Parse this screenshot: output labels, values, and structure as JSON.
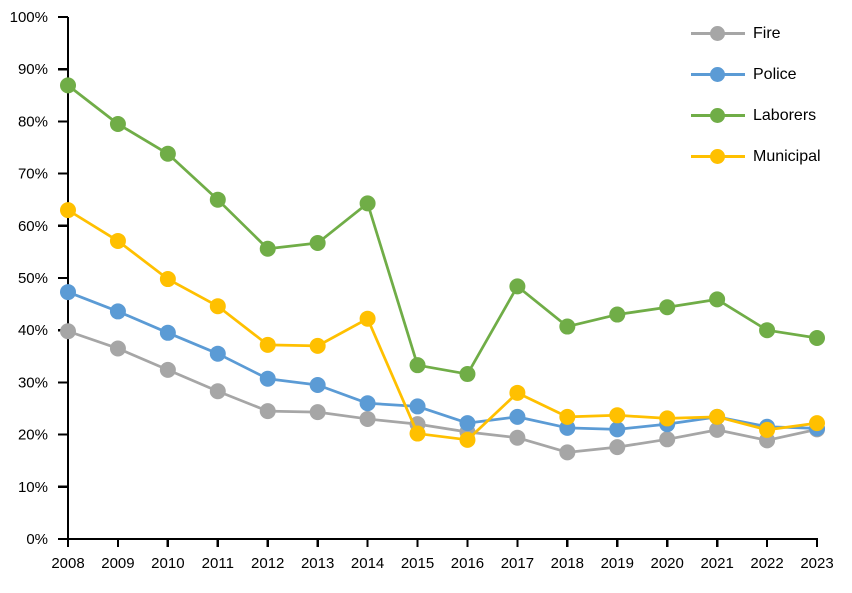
{
  "chart_data": {
    "type": "line",
    "title": "",
    "xlabel": "",
    "ylabel": "",
    "x": [
      "2008",
      "2009",
      "2010",
      "2011",
      "2012",
      "2013",
      "2014",
      "2015",
      "2016",
      "2017",
      "2018",
      "2019",
      "2020",
      "2021",
      "2022",
      "2023"
    ],
    "y_ticks": [
      "0%",
      "10%",
      "20%",
      "30%",
      "40%",
      "50%",
      "60%",
      "70%",
      "80%",
      "90%",
      "100%"
    ],
    "ylim": [
      0,
      100
    ],
    "grid": false,
    "legend_position": "top-right",
    "axis_color": "#000000",
    "background_color": "#ffffff",
    "series": [
      {
        "name": "Fire",
        "color": "#A6A6A6",
        "values": [
          39.8,
          36.5,
          32.4,
          28.3,
          24.5,
          24.3,
          23.0,
          22.0,
          20.5,
          19.4,
          16.6,
          17.6,
          19.1,
          20.9,
          18.9,
          21.0
        ]
      },
      {
        "name": "Police",
        "color": "#5B9BD5",
        "values": [
          47.3,
          43.6,
          39.5,
          35.5,
          30.7,
          29.5,
          26.0,
          25.4,
          22.2,
          23.4,
          21.3,
          21.0,
          22.0,
          23.4,
          21.5,
          21.2
        ]
      },
      {
        "name": "Laborers",
        "color": "#70AD47",
        "values": [
          86.9,
          79.5,
          73.8,
          65.0,
          55.6,
          56.7,
          64.3,
          33.3,
          31.6,
          48.4,
          40.7,
          43.0,
          44.4,
          45.9,
          40.0,
          38.5
        ]
      },
      {
        "name": "Municipal",
        "color": "#FFC000",
        "values": [
          63.0,
          57.1,
          49.8,
          44.6,
          37.2,
          37.0,
          42.2,
          20.2,
          19.0,
          28.0,
          23.4,
          23.7,
          23.1,
          23.4,
          20.9,
          22.2
        ]
      }
    ]
  }
}
